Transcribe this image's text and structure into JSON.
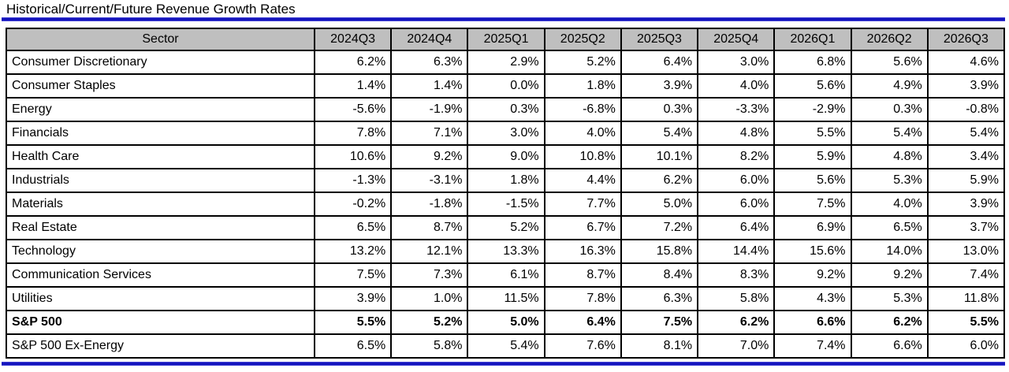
{
  "title": "Historical/Current/Future Revenue Growth Rates",
  "chart_data": {
    "type": "table",
    "title": "Historical/Current/Future Revenue Growth Rates",
    "sector_column_header": "Sector",
    "categories": [
      "2024Q3",
      "2024Q4",
      "2025Q1",
      "2025Q2",
      "2025Q3",
      "2025Q4",
      "2026Q1",
      "2026Q2",
      "2026Q3"
    ],
    "series": [
      {
        "name": "Consumer Discretionary",
        "emphasis": false,
        "values": [
          "6.2%",
          "6.3%",
          "2.9%",
          "5.2%",
          "6.4%",
          "3.0%",
          "6.8%",
          "5.6%",
          "4.6%"
        ]
      },
      {
        "name": "Consumer Staples",
        "emphasis": false,
        "values": [
          "1.4%",
          "1.4%",
          "0.0%",
          "1.8%",
          "3.9%",
          "4.0%",
          "5.6%",
          "4.9%",
          "3.9%"
        ]
      },
      {
        "name": "Energy",
        "emphasis": false,
        "values": [
          "-5.6%",
          "-1.9%",
          "0.3%",
          "-6.8%",
          "0.3%",
          "-3.3%",
          "-2.9%",
          "0.3%",
          "-0.8%"
        ]
      },
      {
        "name": "Financials",
        "emphasis": false,
        "values": [
          "7.8%",
          "7.1%",
          "3.0%",
          "4.0%",
          "5.4%",
          "4.8%",
          "5.5%",
          "5.4%",
          "5.4%"
        ]
      },
      {
        "name": "Health Care",
        "emphasis": false,
        "values": [
          "10.6%",
          "9.2%",
          "9.0%",
          "10.8%",
          "10.1%",
          "8.2%",
          "5.9%",
          "4.8%",
          "3.4%"
        ]
      },
      {
        "name": "Industrials",
        "emphasis": false,
        "values": [
          "-1.3%",
          "-3.1%",
          "1.8%",
          "4.4%",
          "6.2%",
          "6.0%",
          "5.6%",
          "5.3%",
          "5.9%"
        ]
      },
      {
        "name": "Materials",
        "emphasis": false,
        "values": [
          "-0.2%",
          "-1.8%",
          "-1.5%",
          "7.7%",
          "5.0%",
          "6.0%",
          "7.5%",
          "4.0%",
          "3.9%"
        ]
      },
      {
        "name": "Real Estate",
        "emphasis": false,
        "values": [
          "6.5%",
          "8.7%",
          "5.2%",
          "6.7%",
          "7.2%",
          "6.4%",
          "6.9%",
          "6.5%",
          "3.7%"
        ]
      },
      {
        "name": "Technology",
        "emphasis": false,
        "values": [
          "13.2%",
          "12.1%",
          "13.3%",
          "16.3%",
          "15.8%",
          "14.4%",
          "15.6%",
          "14.0%",
          "13.0%"
        ]
      },
      {
        "name": "Communication Services",
        "emphasis": false,
        "values": [
          "7.5%",
          "7.3%",
          "6.1%",
          "8.7%",
          "8.4%",
          "8.3%",
          "9.2%",
          "9.2%",
          "7.4%"
        ]
      },
      {
        "name": "Utilities",
        "emphasis": false,
        "values": [
          "3.9%",
          "1.0%",
          "11.5%",
          "7.8%",
          "6.3%",
          "5.8%",
          "4.3%",
          "5.3%",
          "11.8%"
        ]
      },
      {
        "name": "S&P 500",
        "emphasis": true,
        "values": [
          "5.5%",
          "5.2%",
          "5.0%",
          "6.4%",
          "7.5%",
          "6.2%",
          "6.6%",
          "6.2%",
          "5.5%"
        ]
      },
      {
        "name": "S&P 500 Ex-Energy",
        "emphasis": false,
        "values": [
          "6.5%",
          "5.8%",
          "5.4%",
          "7.6%",
          "8.1%",
          "7.0%",
          "7.4%",
          "6.6%",
          "6.0%"
        ]
      }
    ]
  },
  "colors": {
    "accent_line_blue": "#1111bb",
    "header_background": "#bfbfbf",
    "table_border": "#000000"
  }
}
